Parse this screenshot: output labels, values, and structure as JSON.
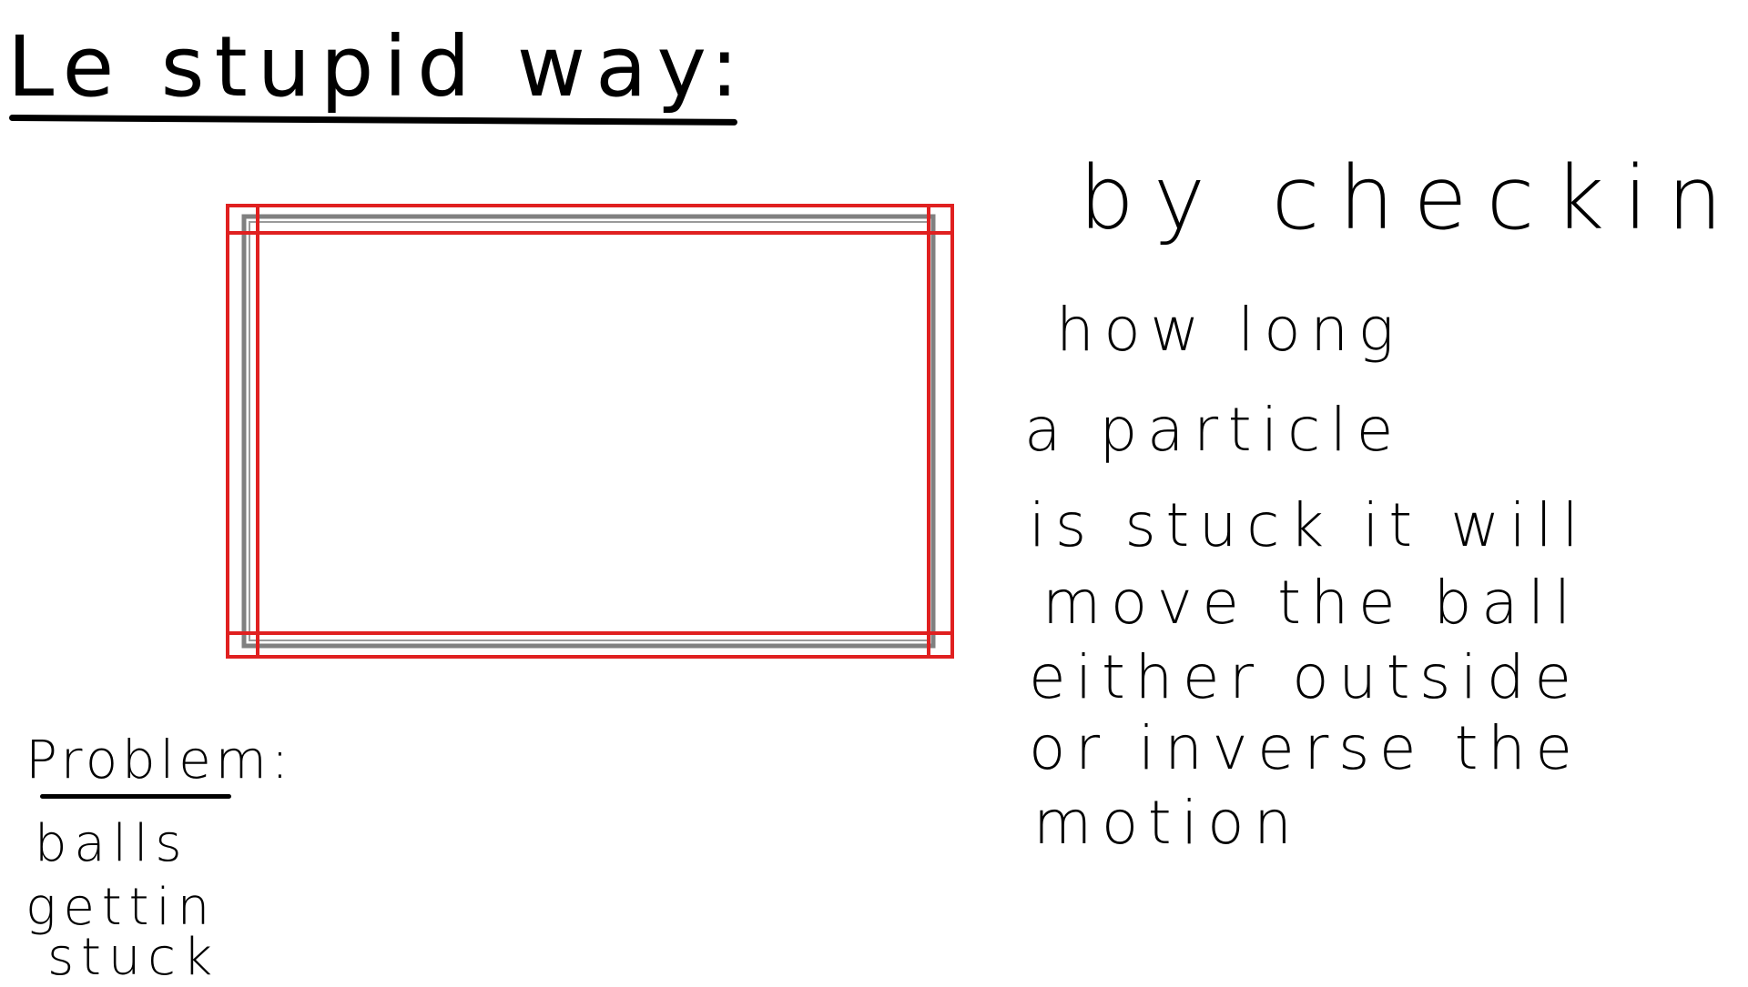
{
  "title": "Le stupid way:",
  "explanation": {
    "lines": [
      "by checking",
      "how long",
      "a particle",
      "is stuck it will",
      "move the ball",
      "either outside",
      "or inverse the",
      "motion"
    ]
  },
  "problem": {
    "heading": "Problem:",
    "lines": [
      "balls",
      "gettin",
      "stuck"
    ]
  },
  "colors": {
    "ink": "#000000",
    "wall_outline": "#808080",
    "collision_zone": "#e02020"
  }
}
